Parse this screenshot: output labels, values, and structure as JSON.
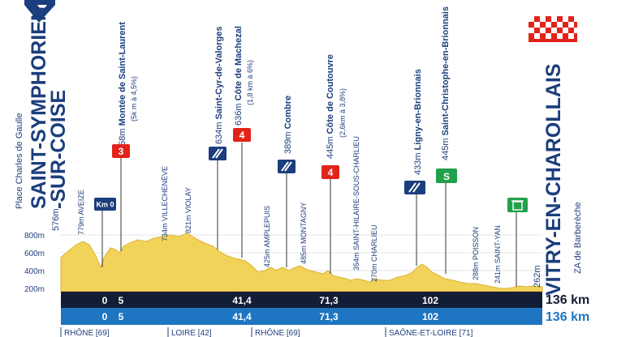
{
  "start": {
    "place": "Place Charles de Gaulle",
    "name_line1": "SAINT-SYMPHORIEN",
    "name_line2": "-SUR-COISE",
    "altitude": "576m"
  },
  "finish": {
    "name": "VITRY-EN-CHAROLLAIS",
    "sub": "ZA de Barberèche",
    "altitude": "262m"
  },
  "altitude_axis": [
    "800m",
    "600m",
    "400m",
    "200m"
  ],
  "waypoints": [
    {
      "alt": "779m",
      "name": "AVEIZE"
    },
    {
      "alt": "658m",
      "name": "Montée de Saint-Laurent",
      "detail": "(5k m à 4,5%)",
      "marker": "3"
    },
    {
      "alt": "734m",
      "name": "VILLECHENÈVE"
    },
    {
      "alt": "821m",
      "name": "VIOLAY"
    },
    {
      "alt": "634m",
      "name": "Saint-Cyr-de-Valorges"
    },
    {
      "alt": "636m",
      "name": "Côte de Machezal",
      "detail": "(1,8 km à 6%)",
      "marker": "4"
    },
    {
      "alt": "425m",
      "name": "AMPLEPUIS"
    },
    {
      "alt": "389m",
      "name": "Combre"
    },
    {
      "alt": "485m",
      "name": "MONTAGNY"
    },
    {
      "alt": "445m",
      "name": "Côte de Coutouvre",
      "detail": "(2,6km à 3,8%)",
      "marker": "4"
    },
    {
      "alt": "354m",
      "name": "SAINT-HILAIRE-SOUS-CHARLIEU"
    },
    {
      "alt": "270m",
      "name": "CHARLIEU"
    },
    {
      "alt": "433m",
      "name": "Ligny-en-Brionnais"
    },
    {
      "alt": "445m",
      "name": "Saint-Christophe-en-Brionnais",
      "marker": "S"
    },
    {
      "alt": "288m",
      "name": "POISSON"
    },
    {
      "alt": "241m",
      "name": "SAINT-YAN"
    }
  ],
  "km0_label": "Km 0",
  "distances_row1": [
    "0",
    "5",
    "41,4",
    "71,3",
    "102"
  ],
  "distances_row2": [
    "0",
    "5",
    "41,4",
    "71,3",
    "102"
  ],
  "total_row1": "136 km",
  "total_row2": "136 km",
  "regions": [
    "RHÔNE [69]",
    "LOIRE [42]",
    "RHÔNE [69]",
    "SAÔNE-ET-LOIRE [71]"
  ],
  "colors": {
    "profile": "#f2d35a",
    "profile_edge": "#d8b32e",
    "navy": "#1b3e7c",
    "blue_band": "#1e75c2",
    "dark_band": "#141d36",
    "climb_red": "#e2231a",
    "sprint_green": "#22a04b"
  },
  "icons": [
    "start-pennant-icon",
    "finish-flag-icon",
    "km0-sign-icon",
    "climb-marker-icon",
    "feed-zone-icon",
    "sprint-marker-icon",
    "bin-icon"
  ]
}
